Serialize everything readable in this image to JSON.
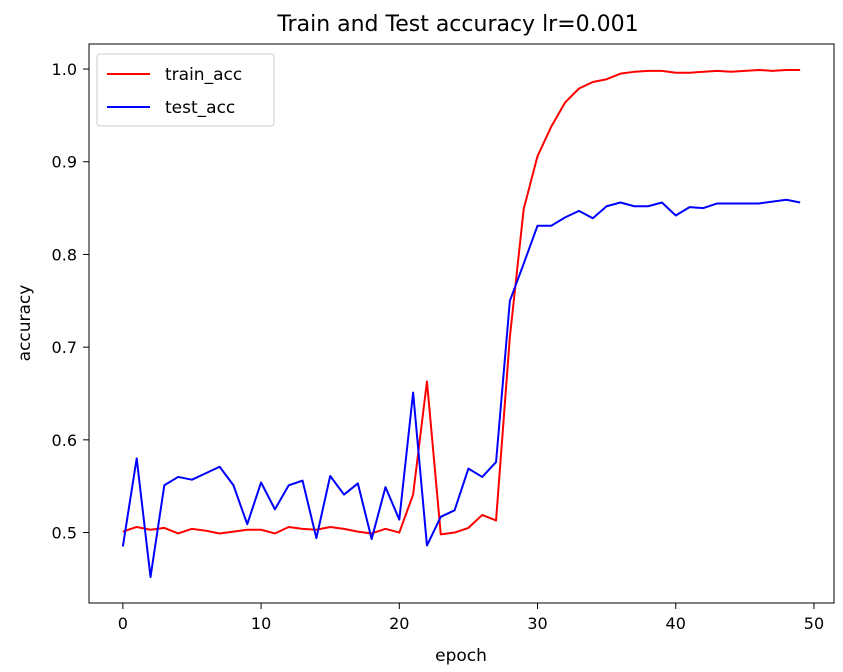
{
  "chart_data": {
    "type": "line",
    "title": "Train and Test accuracy  lr=0.001",
    "xlabel": "epoch",
    "ylabel": "accuracy",
    "xlim": [
      -2.45,
      51.45
    ],
    "ylim": [
      0.424,
      1.027
    ],
    "xticks": [
      0,
      10,
      20,
      30,
      40,
      50
    ],
    "xtick_labels": [
      "0",
      "10",
      "20",
      "30",
      "40",
      "50"
    ],
    "yticks": [
      0.5,
      0.6,
      0.7,
      0.8,
      0.9,
      1.0
    ],
    "ytick_labels": [
      "0.5",
      "0.6",
      "0.7",
      "0.8",
      "0.9",
      "1.0"
    ],
    "grid": false,
    "legend_position": "top-left",
    "x": [
      0,
      1,
      2,
      3,
      4,
      5,
      6,
      7,
      8,
      9,
      10,
      11,
      12,
      13,
      14,
      15,
      16,
      17,
      18,
      19,
      20,
      21,
      22,
      23,
      24,
      25,
      26,
      27,
      28,
      29,
      30,
      31,
      32,
      33,
      34,
      35,
      36,
      37,
      38,
      39,
      40,
      41,
      42,
      43,
      44,
      45,
      46,
      47,
      48,
      49
    ],
    "series": [
      {
        "name": "train_acc",
        "color": "#ff0000",
        "values": [
          0.501,
          0.506,
          0.503,
          0.505,
          0.499,
          0.504,
          0.502,
          0.499,
          0.501,
          0.503,
          0.503,
          0.499,
          0.506,
          0.504,
          0.503,
          0.506,
          0.504,
          0.501,
          0.499,
          0.504,
          0.5,
          0.541,
          0.663,
          0.498,
          0.5,
          0.505,
          0.519,
          0.513,
          0.711,
          0.849,
          0.906,
          0.938,
          0.964,
          0.979,
          0.986,
          0.989,
          0.995,
          0.997,
          0.998,
          0.998,
          0.996,
          0.996,
          0.997,
          0.998,
          0.997,
          0.998,
          0.999,
          0.998,
          0.999,
          0.999
        ]
      },
      {
        "name": "test_acc",
        "color": "#0000ff",
        "values": [
          0.485,
          0.58,
          0.452,
          0.551,
          0.56,
          0.557,
          0.564,
          0.571,
          0.551,
          0.509,
          0.554,
          0.525,
          0.551,
          0.556,
          0.494,
          0.561,
          0.541,
          0.553,
          0.493,
          0.549,
          0.514,
          0.651,
          0.486,
          0.517,
          0.524,
          0.569,
          0.56,
          0.576,
          0.75,
          0.79,
          0.831,
          0.831,
          0.84,
          0.847,
          0.839,
          0.852,
          0.856,
          0.852,
          0.852,
          0.856,
          0.842,
          0.851,
          0.85,
          0.855,
          0.855,
          0.855,
          0.855,
          0.857,
          0.859,
          0.856
        ]
      }
    ]
  }
}
